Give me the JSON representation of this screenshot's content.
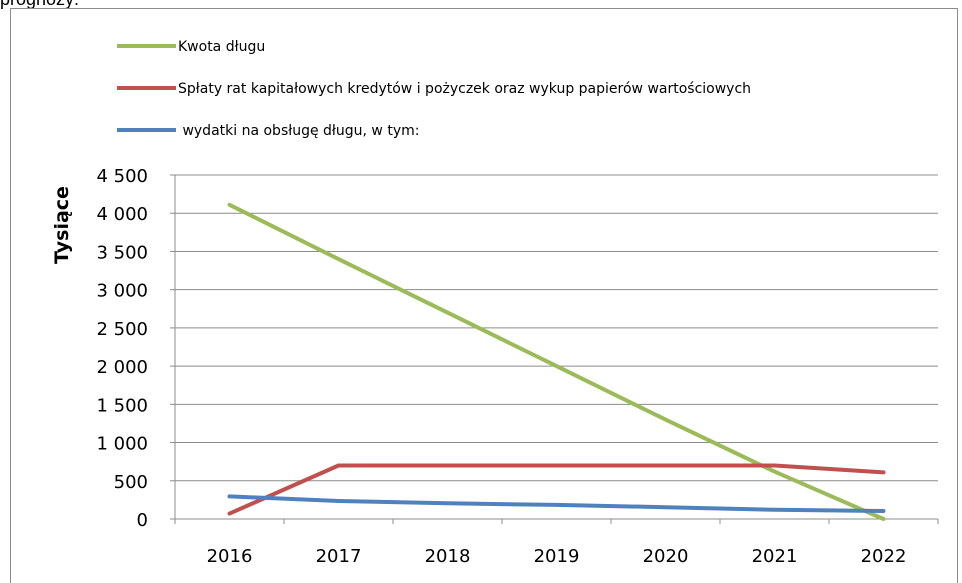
{
  "caption": "prognozy:",
  "chart_data": {
    "type": "line",
    "categories": [
      "2016",
      "2017",
      "2018",
      "2019",
      "2020",
      "2021",
      "2022"
    ],
    "ylabel": "Tysiące",
    "xlabel": "",
    "ylim": [
      0,
      4500
    ],
    "yticks": [
      0,
      500,
      1000,
      1500,
      2000,
      2500,
      3000,
      3500,
      4000,
      4500
    ],
    "ytick_labels": [
      "0",
      "500",
      "1 000",
      "1 500",
      "2 000",
      "2 500",
      "3 000",
      "3 500",
      "4 000",
      "4 500"
    ],
    "grid": true,
    "legend_position": "top",
    "series": [
      {
        "name": "Kwota długu",
        "color": "#9bbb59",
        "values": [
          4110,
          3400,
          2700,
          2000,
          1300,
          620,
          0
        ]
      },
      {
        "name": "Spłaty rat kapitałowych kredytów i pożyczek oraz wykup papierów wartościowych",
        "color": "#c0504d",
        "values": [
          70,
          700,
          700,
          700,
          700,
          700,
          610
        ]
      },
      {
        "name": " wydatki na obsługę długu, w tym:",
        "color": "#4f81bd",
        "values": [
          295,
          235,
          205,
          185,
          155,
          120,
          105
        ]
      }
    ]
  }
}
